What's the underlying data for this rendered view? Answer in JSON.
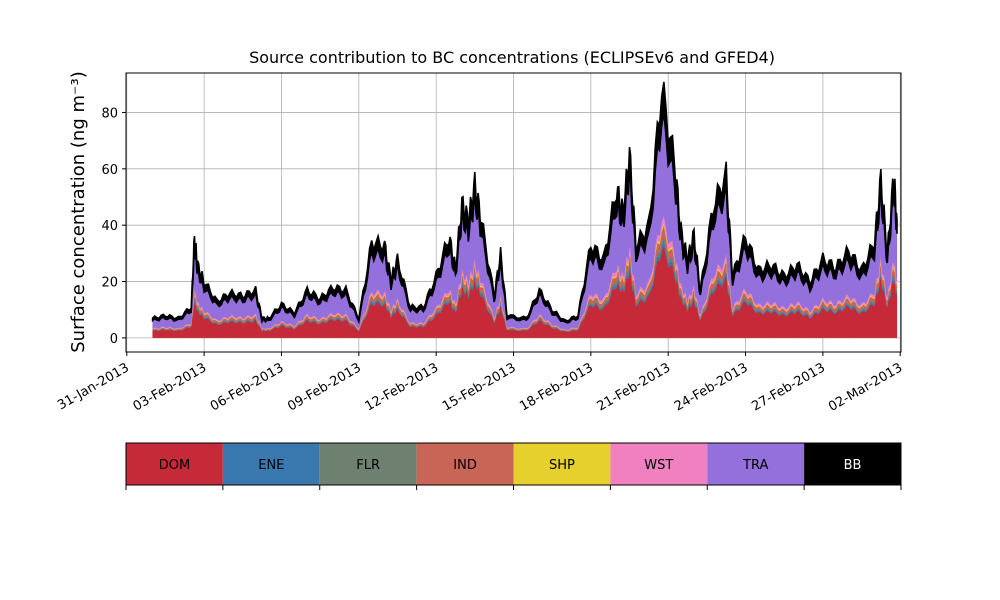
{
  "chart_data": {
    "type": "area",
    "title": "Source contribution to BC concentrations (ECLIPSEv6 and GFED4)",
    "ylabel": "Surface concentration (ng m⁻³)",
    "xlabel": "",
    "ylim": [
      -5,
      94
    ],
    "y_ticks": [
      0,
      20,
      40,
      60,
      80
    ],
    "x_ticks": [
      "31-Jan-2013",
      "03-Feb-2013",
      "06-Feb-2013",
      "09-Feb-2013",
      "12-Feb-2013",
      "15-Feb-2013",
      "18-Feb-2013",
      "21-Feb-2013",
      "24-Feb-2013",
      "27-Feb-2013",
      "02-Mar-2013"
    ],
    "grid": true,
    "legend": "below",
    "series": [
      {
        "name": "DOM",
        "color": "#c62a38"
      },
      {
        "name": "ENE",
        "color": "#3a78b0"
      },
      {
        "name": "FLR",
        "color": "#6e8170"
      },
      {
        "name": "IND",
        "color": "#c96556"
      },
      {
        "name": "SHP",
        "color": "#e6d02e"
      },
      {
        "name": "WST",
        "color": "#f080c0"
      },
      {
        "name": "TRA",
        "color": "#9370db"
      },
      {
        "name": "BB",
        "color": "#000000"
      }
    ],
    "total_profile": [
      [
        "01-Feb-2013 00:00",
        7
      ],
      [
        "01-Feb-2013 12:00",
        8
      ],
      [
        "02-Feb-2013 00:00",
        7
      ],
      [
        "02-Feb-2013 12:00",
        11
      ],
      [
        "02-Feb-2013 15:00",
        36
      ],
      [
        "02-Feb-2013 18:00",
        26
      ],
      [
        "03-Feb-2013 00:00",
        20
      ],
      [
        "03-Feb-2013 12:00",
        13
      ],
      [
        "04-Feb-2013 00:00",
        16
      ],
      [
        "04-Feb-2013 12:00",
        15
      ],
      [
        "05-Feb-2013 00:00",
        17
      ],
      [
        "05-Feb-2013 06:00",
        7
      ],
      [
        "05-Feb-2013 12:00",
        7
      ],
      [
        "06-Feb-2013 00:00",
        12
      ],
      [
        "06-Feb-2013 12:00",
        9
      ],
      [
        "07-Feb-2013 00:00",
        17
      ],
      [
        "07-Feb-2013 12:00",
        14
      ],
      [
        "08-Feb-2013 00:00",
        18
      ],
      [
        "08-Feb-2013 12:00",
        17
      ],
      [
        "09-Feb-2013 00:00",
        7
      ],
      [
        "09-Feb-2013 12:00",
        34
      ],
      [
        "10-Feb-2013 00:00",
        33
      ],
      [
        "10-Feb-2013 06:00",
        21
      ],
      [
        "10-Feb-2013 12:00",
        28
      ],
      [
        "11-Feb-2013 00:00",
        11
      ],
      [
        "11-Feb-2013 12:00",
        11
      ],
      [
        "12-Feb-2013 00:00",
        22
      ],
      [
        "12-Feb-2013 12:00",
        36
      ],
      [
        "12-Feb-2013 18:00",
        25
      ],
      [
        "13-Feb-2013 00:00",
        48
      ],
      [
        "13-Feb-2013 06:00",
        42
      ],
      [
        "13-Feb-2013 12:00",
        55
      ],
      [
        "13-Feb-2013 18:00",
        42
      ],
      [
        "14-Feb-2013 06:00",
        15
      ],
      [
        "14-Feb-2013 12:00",
        30
      ],
      [
        "14-Feb-2013 18:00",
        8
      ],
      [
        "15-Feb-2013 12:00",
        7
      ],
      [
        "16-Feb-2013 00:00",
        17
      ],
      [
        "16-Feb-2013 12:00",
        10
      ],
      [
        "17-Feb-2013 00:00",
        6
      ],
      [
        "17-Feb-2013 12:00",
        8
      ],
      [
        "18-Feb-2013 00:00",
        33
      ],
      [
        "18-Feb-2013 12:00",
        28
      ],
      [
        "19-Feb-2013 00:00",
        53
      ],
      [
        "19-Feb-2013 06:00",
        45
      ],
      [
        "19-Feb-2013 12:00",
        66
      ],
      [
        "19-Feb-2013 18:00",
        33
      ],
      [
        "20-Feb-2013 06:00",
        40
      ],
      [
        "20-Feb-2013 18:00",
        89
      ],
      [
        "21-Feb-2013 06:00",
        62
      ],
      [
        "21-Feb-2013 12:00",
        38
      ],
      [
        "21-Feb-2013 18:00",
        28
      ],
      [
        "22-Feb-2013 00:00",
        37
      ],
      [
        "22-Feb-2013 06:00",
        17
      ],
      [
        "22-Feb-2013 18:00",
        47
      ],
      [
        "23-Feb-2013 06:00",
        58
      ],
      [
        "23-Feb-2013 12:00",
        22
      ],
      [
        "24-Feb-2013 00:00",
        36
      ],
      [
        "24-Feb-2013 12:00",
        24
      ],
      [
        "25-Feb-2013 00:00",
        26
      ],
      [
        "25-Feb-2013 12:00",
        22
      ],
      [
        "26-Feb-2013 00:00",
        26
      ],
      [
        "26-Feb-2013 12:00",
        20
      ],
      [
        "27-Feb-2013 00:00",
        28
      ],
      [
        "27-Feb-2013 12:00",
        25
      ],
      [
        "28-Feb-2013 00:00",
        31
      ],
      [
        "28-Feb-2013 12:00",
        24
      ],
      [
        "01-Mar-2013 00:00",
        34
      ],
      [
        "01-Mar-2013 06:00",
        57
      ],
      [
        "01-Mar-2013 12:00",
        30
      ],
      [
        "01-Mar-2013 18:00",
        58
      ],
      [
        "01-Mar-2013 21:00",
        42
      ]
    ],
    "fractions": [
      0.36,
      0.02,
      0.02,
      0.04,
      0.01,
      0.03,
      0.4,
      0.12
    ]
  }
}
